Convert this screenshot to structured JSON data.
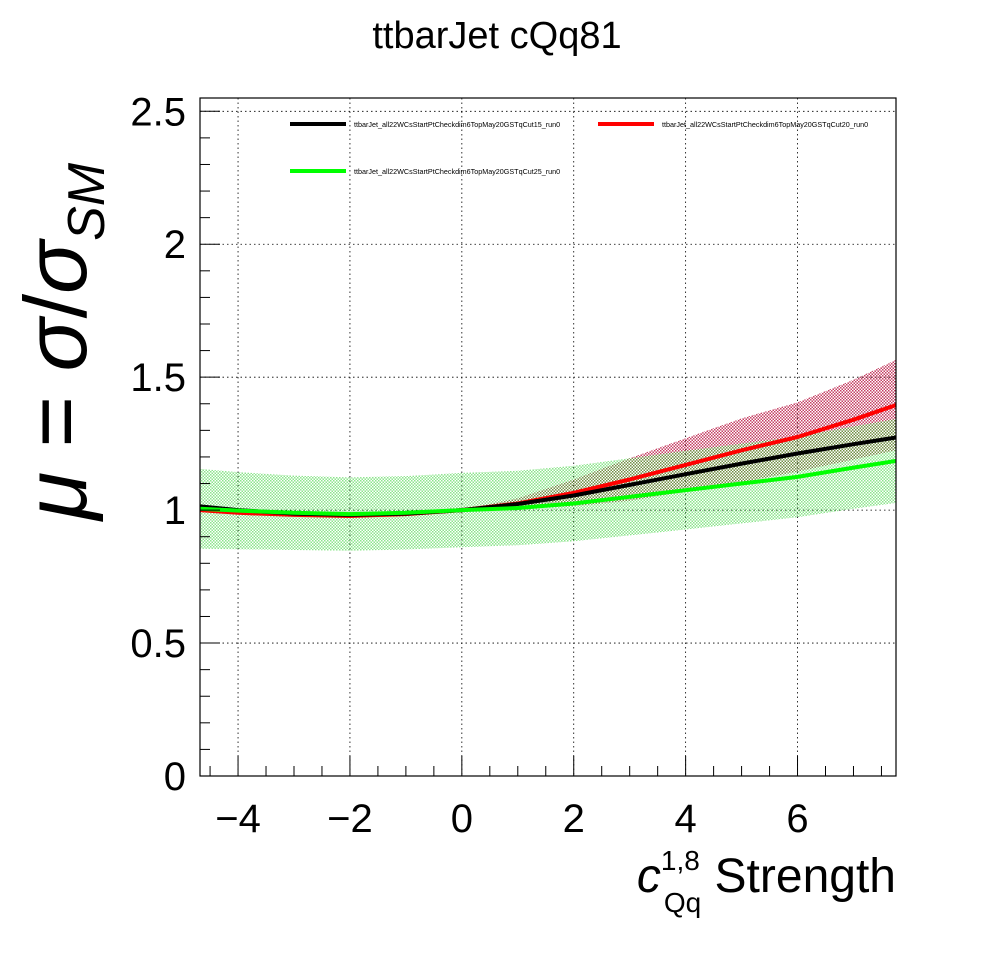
{
  "chart_data": {
    "type": "line",
    "title": "ttbarJet cQq81",
    "xlabel": {
      "symbol": "c",
      "superscript": "1,8",
      "subscript": "Qq",
      "suffix": " Strength"
    },
    "ylabel": {
      "mu": "μ",
      "equals": " = ",
      "sigma": "σ",
      "slash": "/",
      "sigma2": "σ",
      "subscript": "SM"
    },
    "xlim": [
      -4.68,
      7.76
    ],
    "ylim": [
      0,
      2.55
    ],
    "xticks": [
      -4,
      -2,
      0,
      2,
      4,
      6
    ],
    "xtick_labels": [
      "−4",
      "−2",
      "0",
      "2",
      "4",
      "6"
    ],
    "yticks": [
      0,
      0.5,
      1,
      1.5,
      2,
      2.5
    ],
    "ytick_labels": [
      "0",
      "0.5",
      "1",
      "1.5",
      "2",
      "2.5"
    ],
    "grid": true,
    "legend_position": "top",
    "x": [
      -4.68,
      -4,
      -3,
      -2,
      -1,
      0,
      1,
      2,
      3,
      4,
      5,
      6,
      7,
      7.76
    ],
    "series": [
      {
        "name": "ttbarJet_all22WCsStartPtCheckdim6TopMay20GSTqCut15_run0",
        "color": "#000000",
        "values": [
          1.014,
          1.0,
          0.987,
          0.982,
          0.987,
          1.0,
          1.023,
          1.055,
          1.095,
          1.135,
          1.175,
          1.213,
          1.248,
          1.273
        ],
        "band_color": "#555555",
        "band_halfwidth": [
          0.0,
          0.0,
          0.0,
          0.0,
          0.0,
          0.0,
          0.0,
          0.0,
          0.0,
          0.0,
          0.0,
          0.0,
          0.0,
          0.0
        ]
      },
      {
        "name": "ttbarJet_all22WCsStartPtCheckdim6TopMay20GSTqCut20_run0",
        "color": "#ff0000",
        "values": [
          1.0,
          0.99,
          0.982,
          0.978,
          0.985,
          1.0,
          1.025,
          1.065,
          1.115,
          1.17,
          1.225,
          1.275,
          1.34,
          1.395
        ],
        "band_color": "#b00030",
        "band_halfwidth": [
          0.0,
          0.0,
          0.0,
          0.0,
          0.0,
          0.0,
          0.02,
          0.05,
          0.08,
          0.1,
          0.12,
          0.13,
          0.15,
          0.17
        ]
      },
      {
        "name": "ttbarJet_all22WCsStartPtCheckdim6TopMay20GSTqCut25_run0",
        "color": "#00ff00",
        "values": [
          1.005,
          0.998,
          0.99,
          0.985,
          0.99,
          1.0,
          1.008,
          1.025,
          1.05,
          1.075,
          1.1,
          1.125,
          1.16,
          1.185
        ],
        "band_color": "#2ecf2e",
        "band_halfwidth": [
          0.15,
          0.145,
          0.14,
          0.138,
          0.138,
          0.14,
          0.14,
          0.142,
          0.145,
          0.148,
          0.15,
          0.152,
          0.155,
          0.158
        ]
      }
    ]
  }
}
